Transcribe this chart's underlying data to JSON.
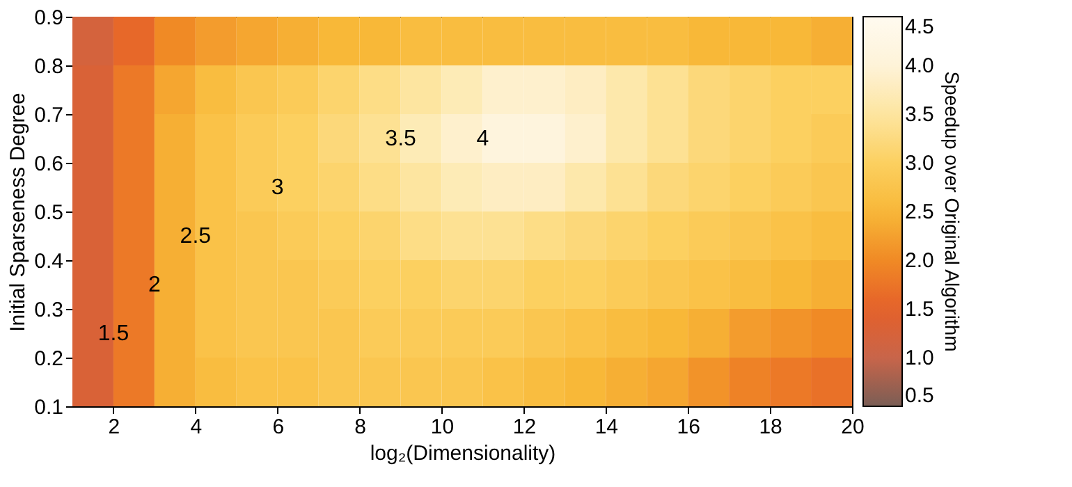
{
  "chart_data": {
    "type": "heatmap",
    "xlabel": "log₂(Dimensionality)",
    "ylabel": "Initial Sparseness Degree",
    "clabel": "Speedup over Original Algorithm",
    "x": [
      1.5,
      2.5,
      3.5,
      4.5,
      5.5,
      6.5,
      7.5,
      8.5,
      9.5,
      10.5,
      11.5,
      12.5,
      13.5,
      14.5,
      15.5,
      16.5,
      17.5,
      18.5,
      19.5
    ],
    "y": [
      0.85,
      0.75,
      0.65,
      0.55,
      0.45,
      0.35,
      0.25,
      0.15
    ],
    "cells": [
      [
        1.2,
        1.6,
        2.0,
        2.2,
        2.3,
        2.4,
        2.5,
        2.5,
        2.6,
        2.6,
        2.6,
        2.6,
        2.6,
        2.6,
        2.6,
        2.5,
        2.5,
        2.5,
        2.4
      ],
      [
        1.3,
        1.8,
        2.3,
        2.6,
        2.8,
        2.9,
        3.1,
        3.3,
        3.5,
        3.7,
        3.9,
        3.9,
        3.8,
        3.6,
        3.4,
        3.2,
        3.1,
        3.0,
        3.0
      ],
      [
        1.3,
        1.8,
        2.4,
        2.7,
        2.9,
        3.0,
        3.2,
        3.4,
        3.7,
        3.9,
        4.1,
        4.1,
        3.9,
        3.6,
        3.4,
        3.2,
        3.1,
        3.0,
        2.9
      ],
      [
        1.3,
        1.8,
        2.4,
        2.7,
        2.9,
        3.0,
        3.1,
        3.3,
        3.5,
        3.7,
        3.8,
        3.8,
        3.6,
        3.4,
        3.2,
        3.1,
        3.0,
        2.9,
        2.8
      ],
      [
        1.3,
        1.8,
        2.4,
        2.7,
        2.8,
        2.9,
        3.0,
        3.1,
        3.3,
        3.4,
        3.4,
        3.3,
        3.2,
        3.1,
        3.0,
        2.9,
        2.8,
        2.7,
        2.6
      ],
      [
        1.3,
        1.8,
        2.4,
        2.7,
        2.8,
        2.8,
        2.9,
        3.0,
        3.0,
        3.1,
        3.1,
        3.0,
        3.0,
        2.9,
        2.8,
        2.7,
        2.6,
        2.5,
        2.4
      ],
      [
        1.3,
        1.8,
        2.4,
        2.7,
        2.8,
        2.8,
        2.8,
        2.9,
        2.9,
        2.9,
        2.9,
        2.8,
        2.7,
        2.6,
        2.5,
        2.4,
        2.2,
        2.1,
        2.0
      ],
      [
        1.3,
        1.8,
        2.4,
        2.6,
        2.7,
        2.7,
        2.8,
        2.8,
        2.8,
        2.8,
        2.7,
        2.6,
        2.5,
        2.4,
        2.3,
        2.1,
        1.9,
        1.8,
        1.7
      ]
    ],
    "xlim": [
      1,
      20
    ],
    "xticks": [
      2,
      4,
      6,
      8,
      10,
      12,
      14,
      16,
      18,
      20
    ],
    "ylim": [
      0.1,
      0.9
    ],
    "yticks": [
      0.1,
      0.2,
      0.3,
      0.4,
      0.5,
      0.6,
      0.7,
      0.8,
      0.9
    ],
    "clim": [
      0.5,
      4.5
    ],
    "cticks": [
      {
        "value": 0.5,
        "label": "0.5"
      },
      {
        "value": 1,
        "label": "1.0"
      },
      {
        "value": 1.5,
        "label": "1.5"
      },
      {
        "value": 2,
        "label": "2.0"
      },
      {
        "value": 2.5,
        "label": "2.5"
      },
      {
        "value": 3,
        "label": "3.0"
      },
      {
        "value": 3.5,
        "label": "3.5"
      },
      {
        "value": 4,
        "label": "4.0"
      },
      {
        "value": 4.5,
        "label": "4.5"
      }
    ],
    "colors": [
      "#7a5e55",
      "#c8654a",
      "#e5602a",
      "#f08a25",
      "#f8b838",
      "#fcd060",
      "#fde5a0",
      "#fef3d8",
      "#fffaf0"
    ],
    "annotations": [
      "1.5",
      "2",
      "2.5",
      "3",
      "3.5",
      "4"
    ]
  }
}
